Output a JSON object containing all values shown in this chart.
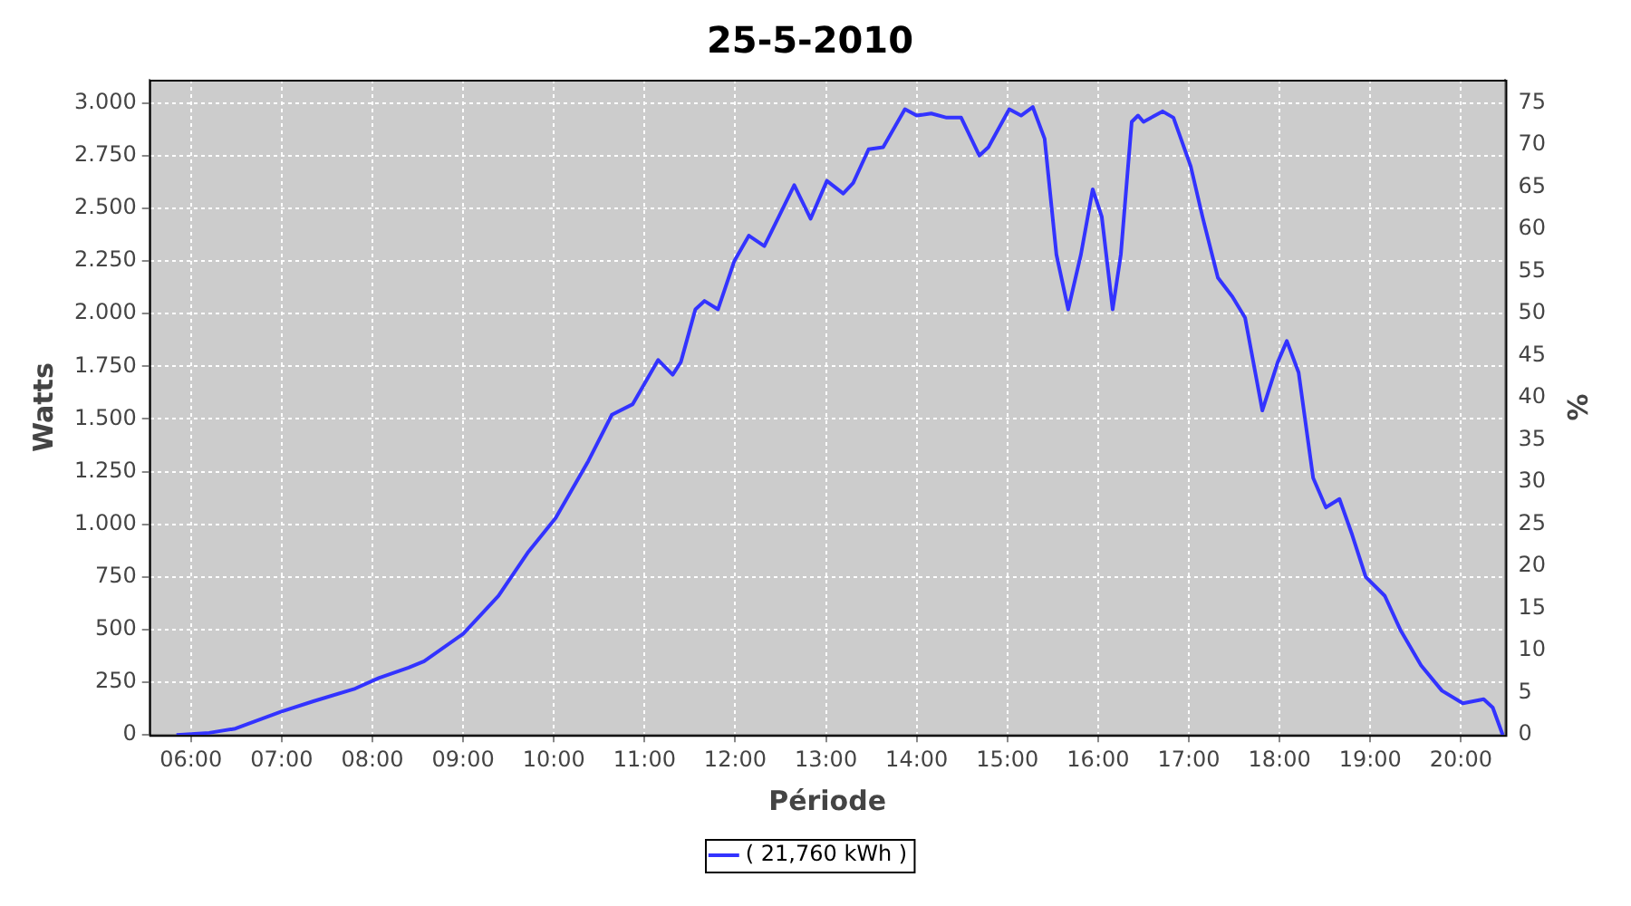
{
  "chart_data": {
    "type": "line",
    "title": "25-5-2010",
    "xlabel": "Période",
    "ylabel": "Watts",
    "y2label": "%",
    "x": [
      5.84,
      6.2,
      6.49,
      6.99,
      7.35,
      7.81,
      8.07,
      8.4,
      8.57,
      9.0,
      9.39,
      9.72,
      10.02,
      10.38,
      10.64,
      10.87,
      11.15,
      11.31,
      11.4,
      11.56,
      11.66,
      11.81,
      11.99,
      12.15,
      12.32,
      12.48,
      12.65,
      12.83,
      13.01,
      13.19,
      13.3,
      13.47,
      13.63,
      13.87,
      14.0,
      14.16,
      14.33,
      14.49,
      14.69,
      14.79,
      15.02,
      15.15,
      15.28,
      15.41,
      15.54,
      15.67,
      15.81,
      15.94,
      16.04,
      16.16,
      16.25,
      16.37,
      16.44,
      16.5,
      16.71,
      16.83,
      17.02,
      17.15,
      17.32,
      17.48,
      17.62,
      17.81,
      17.98,
      18.08,
      18.21,
      18.37,
      18.51,
      18.66,
      18.8,
      18.95,
      19.16,
      19.33,
      19.56,
      19.79,
      20.02,
      20.25,
      20.35,
      20.46
    ],
    "series": [
      {
        "name": "( 21,760 kWh )",
        "color": "#3333ff",
        "values": [
          0,
          10,
          30,
          110,
          160,
          220,
          270,
          320,
          350,
          480,
          660,
          870,
          1030,
          1300,
          1520,
          1570,
          1780,
          1710,
          1770,
          2020,
          2060,
          2020,
          2250,
          2370,
          2320,
          2460,
          2610,
          2450,
          2630,
          2570,
          2620,
          2780,
          2790,
          2970,
          2940,
          2950,
          2930,
          2930,
          2750,
          2790,
          2970,
          2940,
          2980,
          2830,
          2280,
          2020,
          2280,
          2590,
          2460,
          2020,
          2280,
          2910,
          2940,
          2910,
          2960,
          2930,
          2700,
          2460,
          2170,
          2080,
          1980,
          1540,
          1770,
          1870,
          1720,
          1220,
          1080,
          1120,
          950,
          750,
          660,
          500,
          330,
          210,
          150,
          170,
          130,
          0
        ]
      }
    ],
    "xlim": [
      5.54,
      20.49
    ],
    "xticks": [
      {
        "value": 6,
        "label": "06:00"
      },
      {
        "value": 7,
        "label": "07:00"
      },
      {
        "value": 8,
        "label": "08:00"
      },
      {
        "value": 9,
        "label": "09:00"
      },
      {
        "value": 10,
        "label": "10:00"
      },
      {
        "value": 11,
        "label": "11:00"
      },
      {
        "value": 12,
        "label": "12:00"
      },
      {
        "value": 13,
        "label": "13:00"
      },
      {
        "value": 14,
        "label": "14:00"
      },
      {
        "value": 15,
        "label": "15:00"
      },
      {
        "value": 16,
        "label": "16:00"
      },
      {
        "value": 17,
        "label": "17:00"
      },
      {
        "value": 18,
        "label": "18:00"
      },
      {
        "value": 19,
        "label": "19:00"
      },
      {
        "value": 20,
        "label": "20:00"
      }
    ],
    "ylim": [
      0,
      3110
    ],
    "yticks": [
      0,
      250,
      500,
      750,
      {
        "value": 1000,
        "label": "1.000"
      },
      {
        "value": 1250,
        "label": "1.250"
      },
      {
        "value": 1500,
        "label": "1.500"
      },
      {
        "value": 1750,
        "label": "1.750"
      },
      {
        "value": 2000,
        "label": "2.000"
      },
      {
        "value": 2250,
        "label": "2.250"
      },
      {
        "value": 2500,
        "label": "2.500"
      },
      {
        "value": 2750,
        "label": "2.750"
      },
      {
        "value": 3000,
        "label": "3.000"
      }
    ],
    "y2lim": [
      0,
      77.75
    ],
    "y2ticks": [
      0,
      5,
      10,
      15,
      20,
      25,
      30,
      35,
      40,
      45,
      50,
      55,
      60,
      65,
      70,
      75
    ],
    "grid": true,
    "legend": "bottom",
    "marker": "none",
    "line_style": "solid"
  }
}
